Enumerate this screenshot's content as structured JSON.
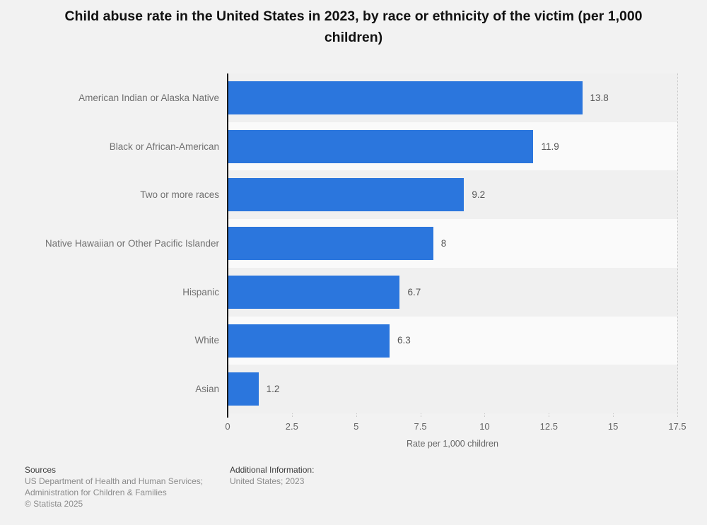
{
  "title": "Child abuse rate in the United States in 2023, by race or ethnicity of the victim (per 1,000 children)",
  "chart_data": {
    "type": "bar",
    "orientation": "horizontal",
    "title": "Child abuse rate in the United States in 2023, by race or ethnicity of the victim (per 1,000 children)",
    "categories": [
      "American Indian or Alaska Native",
      "Black or African-American",
      "Two or more races",
      "Native Hawaiian or Other Pacific Islander",
      "Hispanic",
      "White",
      "Asian"
    ],
    "values": [
      13.8,
      11.9,
      9.2,
      8,
      6.7,
      6.3,
      1.2
    ],
    "value_labels": [
      "13.8",
      "11.9",
      "9.2",
      "8",
      "6.7",
      "6.3",
      "1.2"
    ],
    "xlabel": "Rate per 1,000 children",
    "ylabel": "",
    "xlim": [
      0,
      17.5
    ],
    "xticks": [
      0,
      2.5,
      5,
      7.5,
      10,
      12.5,
      15,
      17.5
    ],
    "xtick_labels": [
      "0",
      "2.5",
      "5",
      "7.5",
      "10",
      "12.5",
      "15",
      "17.5"
    ],
    "grid": "vertical-dotted",
    "legend": "none",
    "bar_color": "#2b76dd"
  },
  "colors": {
    "background": "#f2f2f2",
    "band_light": "#fafafa",
    "band_dark": "#f0f0f0",
    "bar": "#2b76dd",
    "axis": "#1a1a1a",
    "gridline": "#c7c7c7"
  },
  "footer": {
    "sources_heading": "Sources",
    "sources_lines": [
      "US Department of Health and Human Services;",
      "Administration for Children & Families",
      "© Statista 2025"
    ],
    "additional_heading": "Additional Information:",
    "additional_text": "United States; 2023"
  }
}
